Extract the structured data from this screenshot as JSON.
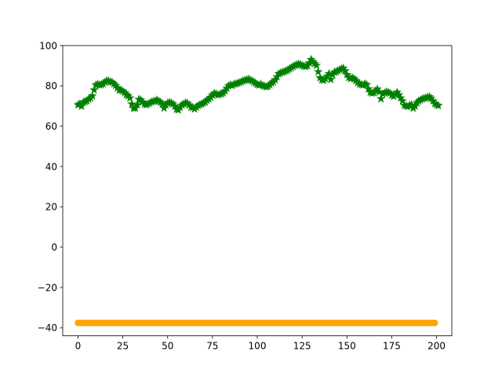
{
  "chart_data": {
    "type": "scatter",
    "title": "",
    "xlabel": "",
    "ylabel": "",
    "xlim": [
      -8.5,
      208.5
    ],
    "ylim": [
      -44,
      100
    ],
    "grid": false,
    "x_ticks": [
      0,
      25,
      50,
      75,
      100,
      125,
      150,
      175,
      200
    ],
    "y_ticks": [
      -40,
      -20,
      0,
      20,
      40,
      60,
      80,
      100
    ],
    "x_tick_labels": [
      "0",
      "25",
      "50",
      "75",
      "100",
      "125",
      "150",
      "175",
      "200"
    ],
    "y_tick_labels": [
      "−40",
      "−20",
      "0",
      "20",
      "40",
      "60",
      "80",
      "100"
    ],
    "series": [
      {
        "marker": "star",
        "color": "#008000",
        "x_start": 0,
        "x_step": 1,
        "values": [
          70.6,
          71.0,
          69.9,
          72.0,
          72.2,
          72.5,
          73.4,
          74.0,
          75.0,
          78.0,
          80.4,
          80.8,
          80.5,
          80.6,
          81.0,
          81.8,
          82.5,
          82.4,
          82.0,
          81.8,
          81.0,
          80.2,
          79.0,
          78.0,
          77.8,
          77.4,
          76.6,
          75.6,
          75.0,
          74.0,
          71.0,
          68.9,
          69.0,
          70.6,
          73.3,
          73.0,
          72.0,
          71.0,
          70.6,
          71.0,
          71.5,
          72.0,
          72.3,
          72.5,
          73.0,
          72.5,
          71.8,
          71.0,
          69.0,
          70.5,
          71.5,
          71.8,
          71.5,
          71.0,
          70.0,
          68.4,
          68.1,
          69.4,
          70.5,
          71.0,
          71.6,
          71.4,
          70.5,
          69.5,
          69.2,
          68.5,
          69.4,
          70.2,
          70.7,
          71.0,
          71.5,
          72.0,
          72.8,
          73.5,
          74.3,
          75.5,
          76.3,
          76.0,
          75.5,
          75.8,
          76.0,
          76.5,
          77.5,
          78.8,
          80.0,
          80.5,
          80.2,
          80.8,
          81.0,
          81.3,
          81.6,
          82.0,
          82.4,
          82.8,
          83.0,
          83.3,
          83.0,
          82.5,
          81.9,
          81.3,
          80.7,
          80.4,
          80.8,
          80.2,
          79.8,
          79.5,
          79.8,
          80.5,
          81.4,
          82.0,
          83.0,
          84.5,
          86.0,
          86.4,
          86.8,
          87.0,
          87.4,
          87.8,
          88.4,
          89.0,
          89.6,
          90.1,
          90.5,
          90.8,
          90.6,
          90.1,
          89.8,
          89.6,
          90.0,
          91.3,
          93.1,
          92.0,
          91.0,
          90.2,
          87.0,
          84.0,
          83.0,
          82.8,
          83.5,
          84.8,
          86.0,
          83.2,
          85.5,
          86.8,
          87.0,
          87.5,
          88.0,
          88.4,
          88.8,
          87.5,
          85.6,
          84.2,
          83.6,
          84.0,
          83.5,
          82.6,
          81.6,
          81.0,
          80.6,
          80.4,
          81.0,
          80.6,
          78.5,
          76.8,
          76.4,
          76.6,
          77.5,
          78.4,
          77.0,
          73.6,
          76.0,
          76.5,
          77.0,
          76.8,
          76.4,
          75.4,
          74.8,
          75.8,
          76.8,
          75.6,
          74.0,
          72.6,
          70.4,
          70.0,
          69.8,
          70.4,
          70.6,
          68.9,
          70.0,
          71.6,
          72.4,
          73.0,
          73.5,
          73.8,
          74.0,
          74.3,
          74.6,
          73.8,
          72.6,
          71.2,
          70.6,
          70.2
        ]
      },
      {
        "marker": "circle",
        "color": "#ffa500",
        "x_start": 0,
        "x_step": 1,
        "count": 200,
        "constant_value": -37.6
      }
    ]
  }
}
